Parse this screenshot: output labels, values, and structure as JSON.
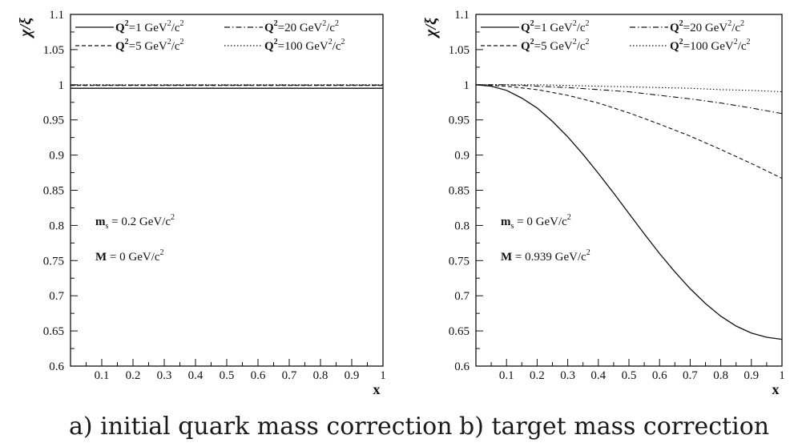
{
  "chart_data": [
    {
      "type": "line",
      "ylabel": "χ/ξ",
      "xlabel": "x",
      "xlim": [
        0,
        1
      ],
      "ylim": [
        0.6,
        1.1
      ],
      "xticks": [
        "0.1",
        "0.2",
        "0.3",
        "0.4",
        "0.5",
        "0.6",
        "0.7",
        "0.8",
        "0.9",
        "1"
      ],
      "yticks": [
        "0.6",
        "0.65",
        "0.7",
        "0.75",
        "0.8",
        "0.85",
        "0.9",
        "0.95",
        "1",
        "1.05",
        "1.1"
      ],
      "legend": [
        {
          "q": "Q",
          "sup": "2",
          "rest": "=1 GeV",
          "sup2": "2",
          "tail": "/c",
          "sup3": "2",
          "style": "solid"
        },
        {
          "q": "Q",
          "sup": "2",
          "rest": "=20 GeV",
          "sup2": "2",
          "tail": "/c",
          "sup3": "2",
          "style": "dashdot"
        },
        {
          "q": "Q",
          "sup": "2",
          "rest": "=5 GeV",
          "sup2": "2",
          "tail": "/c",
          "sup3": "2",
          "style": "dashed"
        },
        {
          "q": "Q",
          "sup": "2",
          "rest": "=100 GeV",
          "sup2": "2",
          "tail": "/c",
          "sup3": "2",
          "style": "dotted"
        }
      ],
      "annotations": [
        {
          "pre": "m",
          "sub": "s",
          "text": " = 0.2 GeV/c",
          "sup": "2"
        },
        {
          "pre": "M",
          "sub": "",
          "text": " = 0 GeV/c",
          "sup": "2"
        }
      ],
      "series": [
        {
          "style": "solid",
          "x": [
            0,
            1
          ],
          "y": [
            0.995,
            0.995
          ]
        },
        {
          "style": "dashdot",
          "x": [
            0,
            1
          ],
          "y": [
            0.9995,
            0.9995
          ]
        },
        {
          "style": "dashed",
          "x": [
            0,
            1
          ],
          "y": [
            0.999,
            0.999
          ]
        },
        {
          "style": "dotted",
          "x": [
            0,
            1
          ],
          "y": [
            1.0,
            1.0
          ]
        }
      ]
    },
    {
      "type": "line",
      "ylabel": "χ/ξ",
      "xlabel": "x",
      "xlim": [
        0,
        1
      ],
      "ylim": [
        0.6,
        1.1
      ],
      "xticks": [
        "0.1",
        "0.2",
        "0.3",
        "0.4",
        "0.5",
        "0.6",
        "0.7",
        "0.8",
        "0.9",
        "1"
      ],
      "yticks": [
        "0.6",
        "0.65",
        "0.7",
        "0.75",
        "0.8",
        "0.85",
        "0.9",
        "0.95",
        "1",
        "1.05",
        "1.1"
      ],
      "legend": [
        {
          "q": "Q",
          "sup": "2",
          "rest": "=1 GeV",
          "sup2": "2",
          "tail": "/c",
          "sup3": "2",
          "style": "solid"
        },
        {
          "q": "Q",
          "sup": "2",
          "rest": "=20 GeV",
          "sup2": "2",
          "tail": "/c",
          "sup3": "2",
          "style": "dashdot"
        },
        {
          "q": "Q",
          "sup": "2",
          "rest": "=5 GeV",
          "sup2": "2",
          "tail": "/c",
          "sup3": "2",
          "style": "dashed"
        },
        {
          "q": "Q",
          "sup": "2",
          "rest": "=100 GeV",
          "sup2": "2",
          "tail": "/c",
          "sup3": "2",
          "style": "dotted"
        }
      ],
      "annotations": [
        {
          "pre": "m",
          "sub": "s",
          "text": " = 0 GeV/c",
          "sup": "2"
        },
        {
          "pre": "M",
          "sub": "",
          "text": " = 0.939 GeV/c",
          "sup": "2"
        }
      ],
      "series": [
        {
          "style": "solid",
          "x": [
            0,
            0.05,
            0.1,
            0.15,
            0.2,
            0.25,
            0.3,
            0.35,
            0.4,
            0.45,
            0.5,
            0.55,
            0.6,
            0.65,
            0.7,
            0.75,
            0.8,
            0.85,
            0.9,
            0.95,
            1.0
          ],
          "y": [
            1.0,
            0.998,
            0.992,
            0.981,
            0.967,
            0.948,
            0.926,
            0.901,
            0.874,
            0.846,
            0.817,
            0.788,
            0.76,
            0.734,
            0.71,
            0.689,
            0.671,
            0.657,
            0.647,
            0.641,
            0.638
          ]
        },
        {
          "style": "dashdot",
          "x": [
            0,
            0.1,
            0.2,
            0.3,
            0.4,
            0.5,
            0.6,
            0.7,
            0.8,
            0.9,
            1.0
          ],
          "y": [
            1.0,
            1.0,
            0.998,
            0.996,
            0.993,
            0.99,
            0.985,
            0.98,
            0.974,
            0.967,
            0.959
          ]
        },
        {
          "style": "dashed",
          "x": [
            0,
            0.1,
            0.2,
            0.3,
            0.4,
            0.5,
            0.6,
            0.7,
            0.8,
            0.9,
            1.0
          ],
          "y": [
            1.0,
            0.998,
            0.993,
            0.985,
            0.974,
            0.96,
            0.944,
            0.927,
            0.908,
            0.888,
            0.867
          ]
        },
        {
          "style": "dotted",
          "x": [
            0,
            0.1,
            0.2,
            0.3,
            0.4,
            0.5,
            0.6,
            0.7,
            0.8,
            0.9,
            1.0
          ],
          "y": [
            1.0,
            1.0,
            1.0,
            0.999,
            0.998,
            0.997,
            0.996,
            0.995,
            0.993,
            0.992,
            0.99
          ]
        }
      ]
    }
  ],
  "captions": [
    "a) initial quark mass correction",
    "b) target mass correction"
  ]
}
